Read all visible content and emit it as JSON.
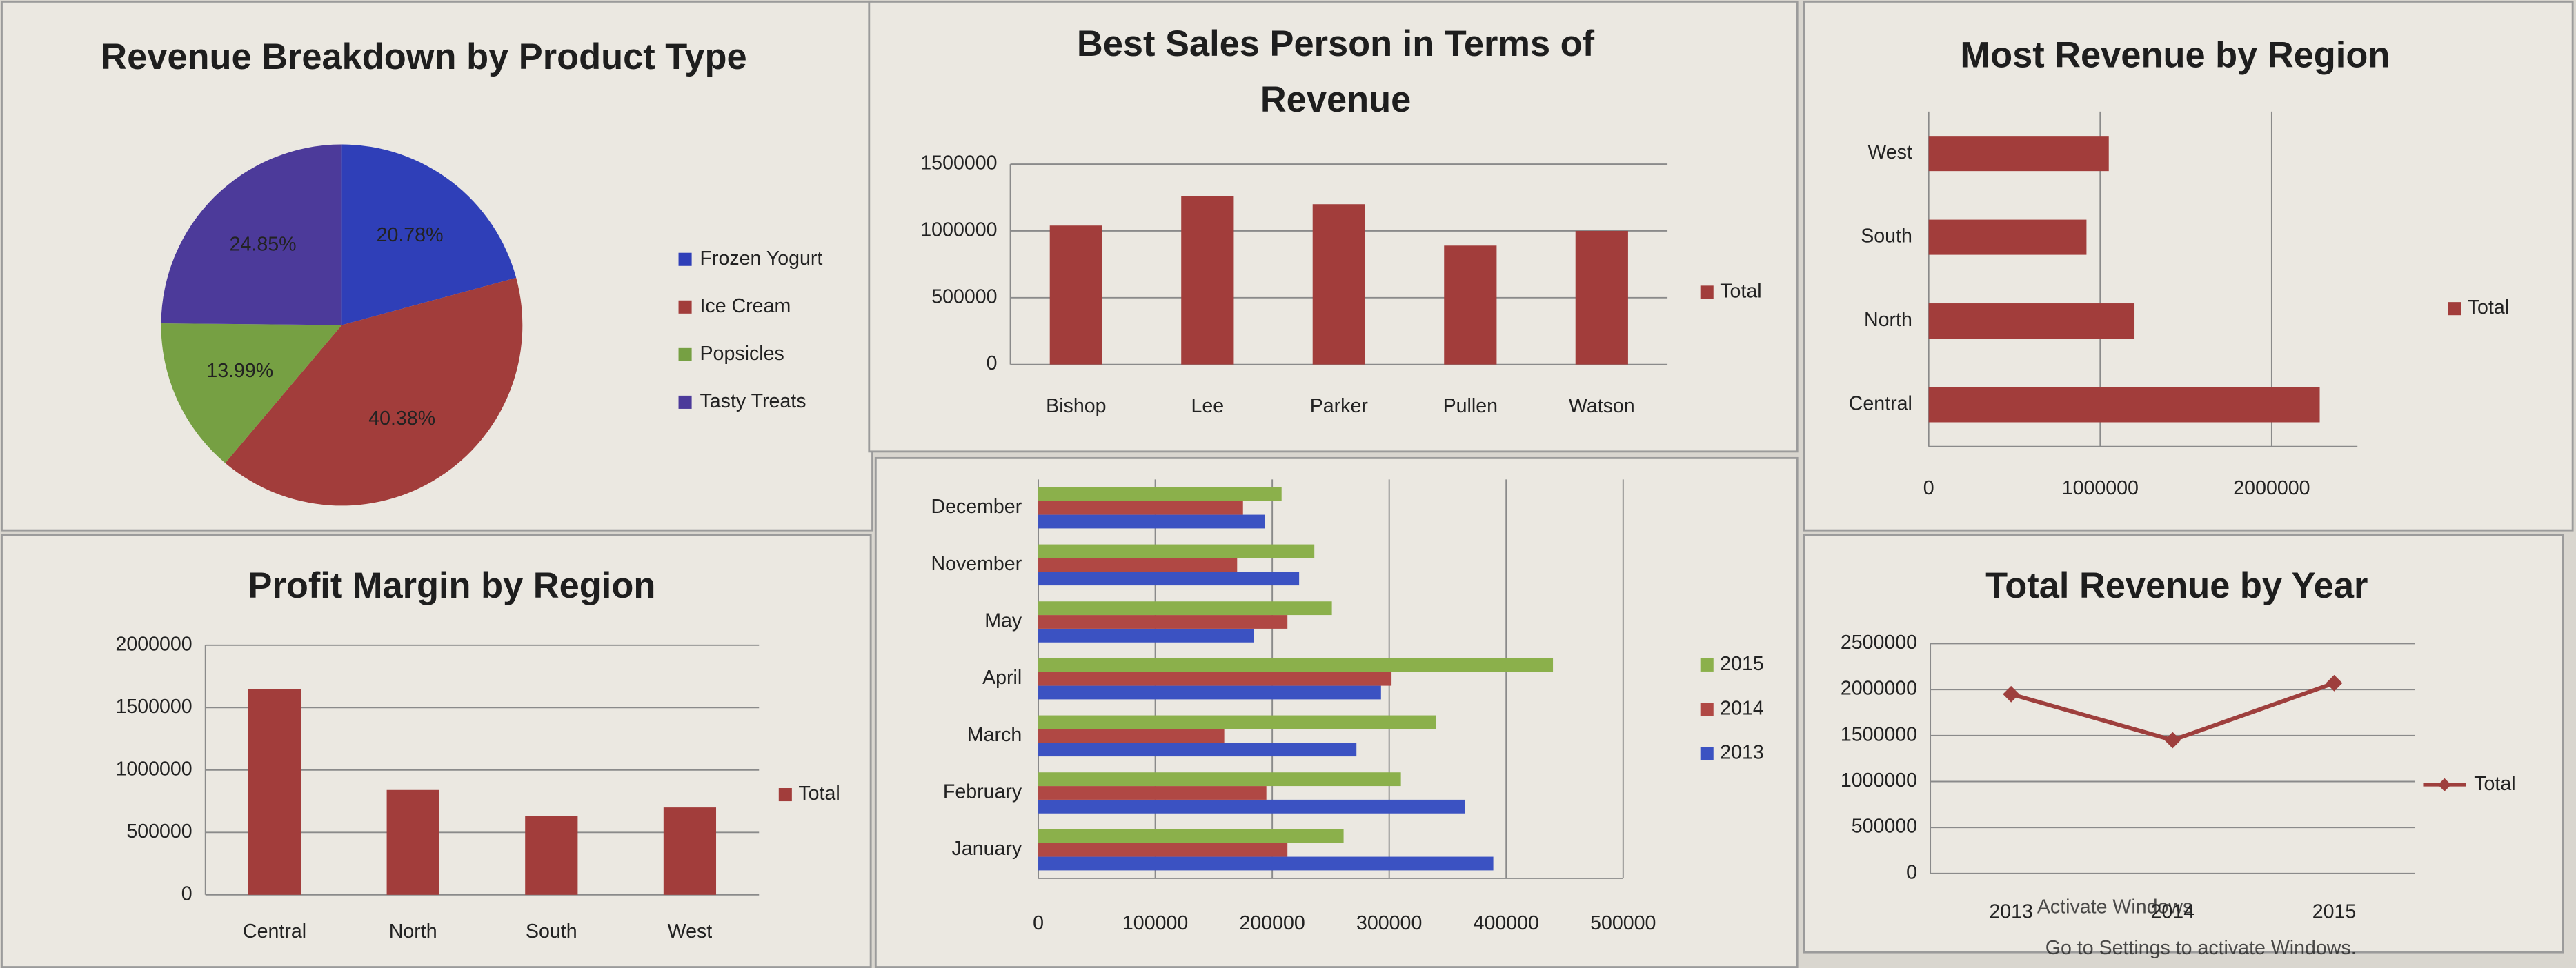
{
  "chart_data": [
    {
      "type": "pie",
      "title": "Revenue Breakdown by Product Type",
      "categories": [
        "Frozen Yogurt",
        "Ice Cream",
        "Popsicles",
        "Tasty Treats"
      ],
      "values": [
        20.78,
        40.38,
        13.99,
        24.85
      ],
      "value_labels": [
        "20.78%",
        "40.38%",
        "13.99%",
        "24.85%"
      ],
      "colors": [
        "#2f3fb8",
        "#a23d3b",
        "#76a043",
        "#4c3a9a"
      ]
    },
    {
      "type": "bar",
      "title": "Best Sales Person in Terms of Revenue",
      "categories": [
        "Bishop",
        "Lee",
        "Parker",
        "Pullen",
        "Watson"
      ],
      "series": [
        {
          "name": "Total",
          "color": "#a23d3b",
          "values": [
            1040000,
            1260000,
            1200000,
            890000,
            1000000
          ]
        }
      ],
      "ylim": [
        0,
        1500000
      ],
      "yticks": [
        0,
        500000,
        1000000,
        1500000
      ],
      "grid": true
    },
    {
      "type": "hbar",
      "title": "Most Revenue by Region",
      "categories": [
        "Central",
        "North",
        "South",
        "West"
      ],
      "series": [
        {
          "name": "Total",
          "color": "#a23d3b",
          "values": [
            2280000,
            1200000,
            920000,
            1050000
          ]
        }
      ],
      "xlim": [
        0,
        2500000
      ],
      "xticks": [
        0,
        1000000,
        2000000
      ],
      "grid": true
    },
    {
      "type": "bar",
      "title": "Profit Margin by Region",
      "categories": [
        "Central",
        "North",
        "South",
        "West"
      ],
      "series": [
        {
          "name": "Total",
          "color": "#a23d3b",
          "values": [
            1650000,
            840000,
            630000,
            700000
          ]
        }
      ],
      "ylim": [
        0,
        2000000
      ],
      "yticks": [
        0,
        500000,
        1000000,
        1500000,
        2000000
      ],
      "grid": true
    },
    {
      "type": "hbar",
      "categories": [
        "January",
        "February",
        "March",
        "April",
        "May",
        "November",
        "December"
      ],
      "series": [
        {
          "name": "2013",
          "color": "#3b52c2",
          "values": [
            389000,
            365000,
            272000,
            293000,
            184000,
            223000,
            194000
          ]
        },
        {
          "name": "2014",
          "color": "#b04844",
          "values": [
            213000,
            195000,
            159000,
            302000,
            213000,
            170000,
            175000
          ]
        },
        {
          "name": "2015",
          "color": "#8bb04b",
          "values": [
            261000,
            310000,
            340000,
            440000,
            251000,
            236000,
            208000
          ]
        }
      ],
      "xlim": [
        0,
        500000
      ],
      "xticks": [
        0,
        100000,
        200000,
        300000,
        400000,
        500000
      ],
      "grid": true
    },
    {
      "type": "line",
      "title": "Total Revenue by Year",
      "categories": [
        "2013",
        "2014",
        "2015"
      ],
      "series": [
        {
          "name": "Total",
          "color": "#9e3f3d",
          "values": [
            1950000,
            1450000,
            2070000
          ]
        }
      ],
      "ylim": [
        0,
        2500000
      ],
      "yticks": [
        0,
        500000,
        1000000,
        1500000,
        2000000,
        2500000
      ],
      "grid": true
    }
  ],
  "watermark": {
    "title": "Activate Windows",
    "subtitle": "Go to Settings to activate Windows."
  }
}
